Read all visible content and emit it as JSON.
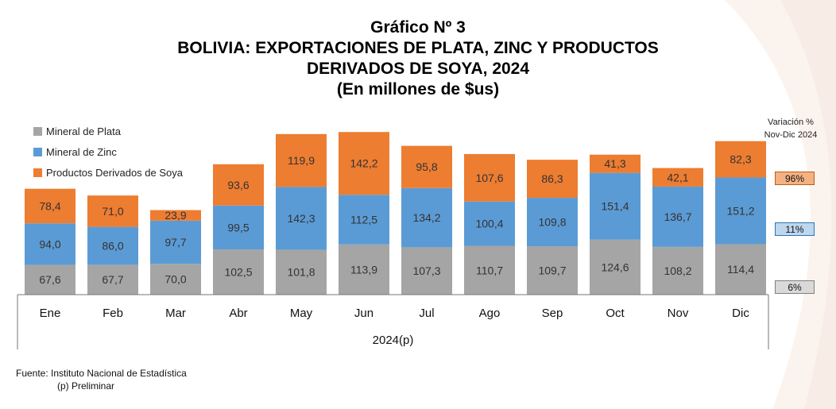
{
  "title": {
    "line1": "Gráfico Nº 3",
    "line2": "BOLIVIA: EXPORTACIONES DE PLATA, ZINC Y PRODUCTOS",
    "line3": "DERIVADOS DE SOYA, 2024",
    "line4": "(En millones de $us)"
  },
  "colors": {
    "plata": "#A5A5A5",
    "zinc": "#5B9BD5",
    "soya": "#ED7D31"
  },
  "variation": {
    "title_line1": "Variación %",
    "title_line2": "Nov-Dic 2024",
    "soya": "96%",
    "zinc": "11%",
    "plata": "6%"
  },
  "chart_data": {
    "type": "bar",
    "stacked": true,
    "xlabel": "2024(p)",
    "categories": [
      "Ene",
      "Feb",
      "Mar",
      "Abr",
      "May",
      "Jun",
      "Jul",
      "Ago",
      "Sep",
      "Oct",
      "Nov",
      "Dic"
    ],
    "series": [
      {
        "name": "Mineral de Plata",
        "values": [
          67.6,
          67.7,
          70.0,
          102.5,
          101.8,
          113.9,
          107.3,
          110.7,
          109.7,
          124.6,
          108.2,
          114.4
        ]
      },
      {
        "name": "Mineral de Zinc",
        "values": [
          94.0,
          86.0,
          97.7,
          99.5,
          142.3,
          112.5,
          134.2,
          100.4,
          109.8,
          151.4,
          136.7,
          151.2
        ]
      },
      {
        "name": "Productos Derivados de Soya",
        "values": [
          78.4,
          71.0,
          23.9,
          93.6,
          119.9,
          142.2,
          95.8,
          107.6,
          86.3,
          41.3,
          42.1,
          82.3
        ]
      }
    ],
    "labels": [
      [
        "67,6",
        "67,7",
        "70,0",
        "102,5",
        "101,8",
        "113,9",
        "107,3",
        "110,7",
        "109,7",
        "124,6",
        "108,2",
        "114,4"
      ],
      [
        "94,0",
        "86,0",
        "97,7",
        "99,5",
        "142,3",
        "112,5",
        "134,2",
        "100,4",
        "109,8",
        "151,4",
        "136,7",
        "151,2"
      ],
      [
        "78,4",
        "71,0",
        "23,9",
        "93,6",
        "119,9",
        "142,2",
        "95,8",
        "107,6",
        "86,3",
        "41,3",
        "42,1",
        "82,3"
      ]
    ],
    "legend": "top-left",
    "grid": false
  },
  "footer": {
    "source": "Fuente: Instituto Nacional de Estadística",
    "note": "(p) Preliminar"
  }
}
